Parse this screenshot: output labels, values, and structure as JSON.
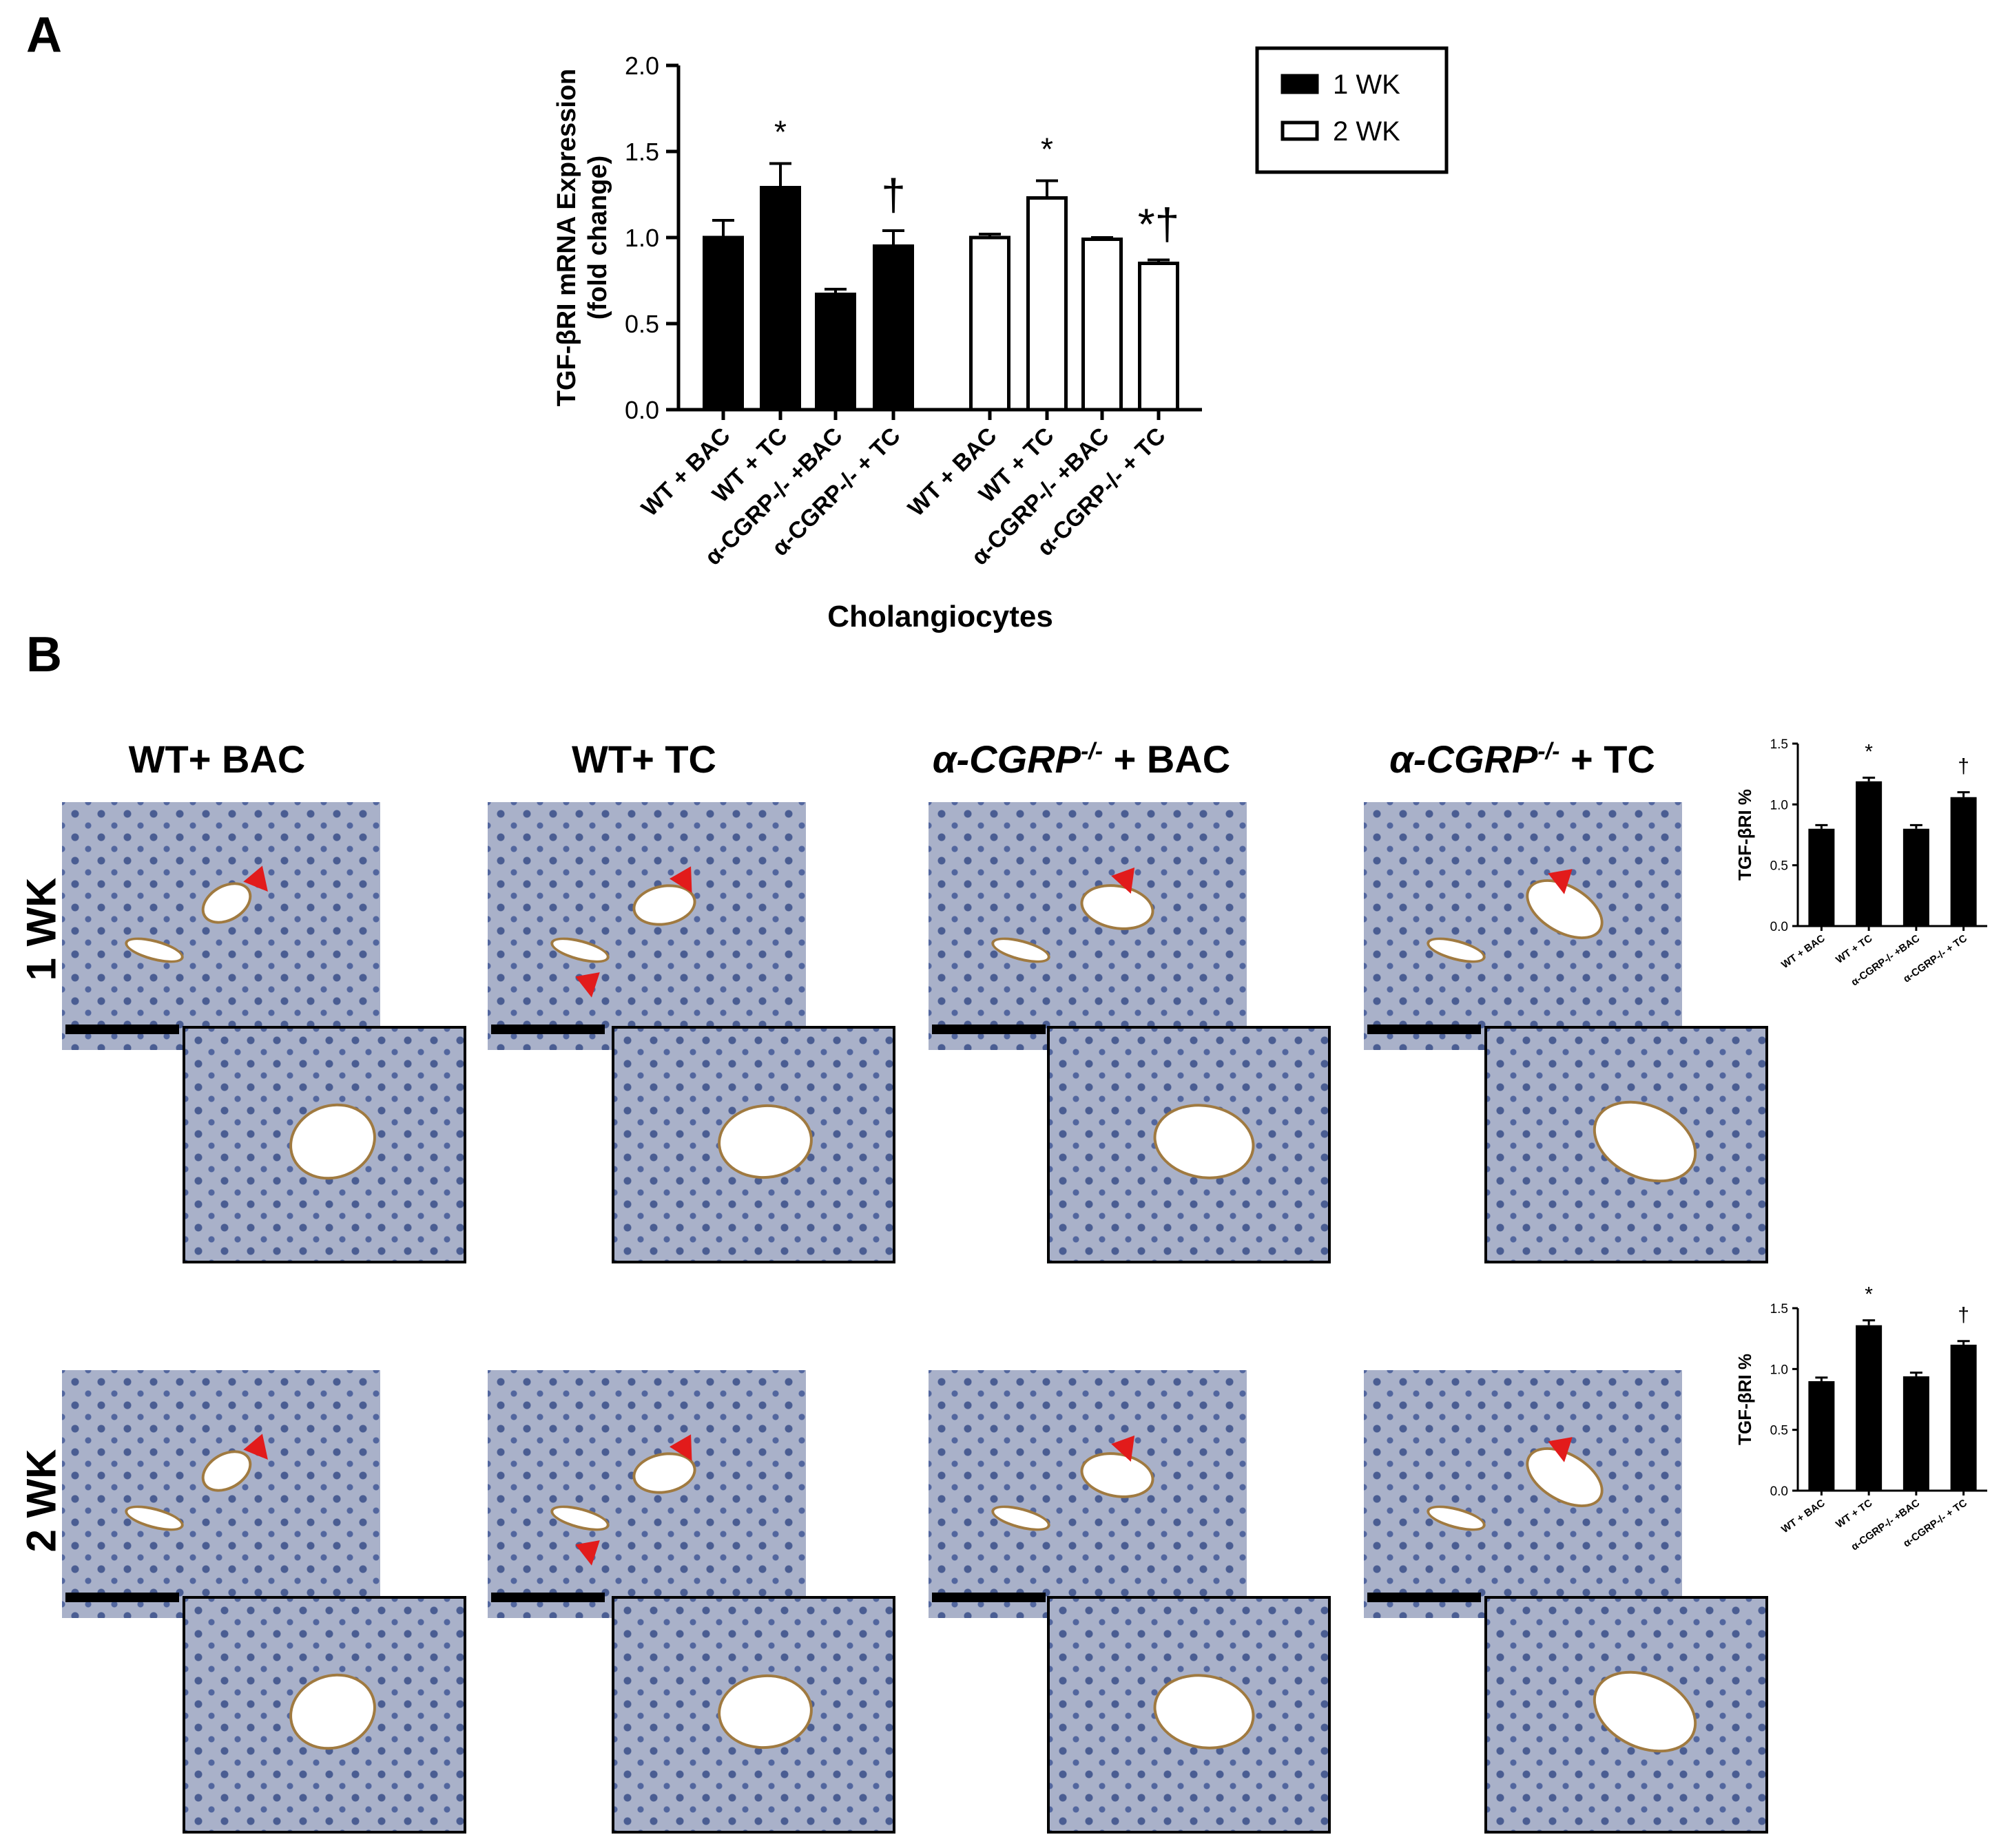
{
  "panel_labels": {
    "a": "A",
    "b": "B"
  },
  "chart_data": [
    {
      "type": "bar",
      "ylabel_line1": "TGF-βRI mRNA Expression",
      "ylabel_line2": "(fold change)",
      "xlabel": "Cholangiocytes",
      "ylim": [
        0,
        2.0
      ],
      "yticks": [
        "0.0",
        "0.5",
        "1.0",
        "1.5",
        "2.0"
      ],
      "categories": [
        "WT + BAC",
        "WT + TC",
        "α-CGRP-/- +BAC",
        "α-CGRP-/- + TC"
      ],
      "legend": {
        "placement": "top-right",
        "entries": [
          "1 WK",
          "2 WK"
        ]
      },
      "series": [
        {
          "name": "1 WK",
          "color": "#000000",
          "values": [
            1.0,
            1.29,
            0.67,
            0.95
          ],
          "errors": [
            0.1,
            0.14,
            0.03,
            0.09
          ],
          "annotations": [
            "",
            "*",
            "",
            "†"
          ]
        },
        {
          "name": "2 WK",
          "color": "#ffffff",
          "values": [
            1.0,
            1.23,
            0.99,
            0.85
          ],
          "errors": [
            0.02,
            0.1,
            0.01,
            0.02
          ],
          "annotations": [
            "",
            "*",
            "",
            "*†"
          ]
        }
      ]
    },
    {
      "type": "bar",
      "row": "1 WK",
      "ylabel": "TGF-βRI %",
      "ylim": [
        0,
        1.5
      ],
      "yticks": [
        "0.0",
        "0.5",
        "1.0",
        "1.5"
      ],
      "categories": [
        "WT + BAC",
        "WT + TC",
        "α-CGRP-/- +BAC",
        "α-CGRP-/- + TC"
      ],
      "values": [
        0.8,
        1.19,
        0.8,
        1.06
      ],
      "errors": [
        0.03,
        0.03,
        0.03,
        0.04
      ],
      "annotations": [
        "",
        "*",
        "",
        "†"
      ]
    },
    {
      "type": "bar",
      "row": "2 WK",
      "ylabel": "TGF-βRI %",
      "ylim": [
        0,
        1.5
      ],
      "yticks": [
        "0.0",
        "0.5",
        "1.0",
        "1.5"
      ],
      "categories": [
        "WT + BAC",
        "WT + TC",
        "α-CGRP-/- +BAC",
        "α-CGRP-/- + TC"
      ],
      "values": [
        0.9,
        1.36,
        0.94,
        1.2
      ],
      "errors": [
        0.03,
        0.04,
        0.03,
        0.03
      ],
      "annotations": [
        "",
        "*",
        "",
        "†"
      ]
    }
  ],
  "columns": [
    {
      "prefix": "WT+ BAC",
      "italic": "",
      "sup": "",
      "suffix": ""
    },
    {
      "prefix": "WT+ TC",
      "italic": "",
      "sup": "",
      "suffix": ""
    },
    {
      "prefix": "",
      "italic": "α-CGRP",
      "sup": "-/-",
      "suffix": " + BAC"
    },
    {
      "prefix": "",
      "italic": "α-CGRP",
      "sup": "-/-",
      "suffix": " + TC"
    }
  ],
  "rows": [
    "1 WK",
    "2 WK"
  ],
  "colors": {
    "tissue": "#a9b1c9",
    "arrow": "#e21b1b",
    "stain": "#a07a40"
  }
}
